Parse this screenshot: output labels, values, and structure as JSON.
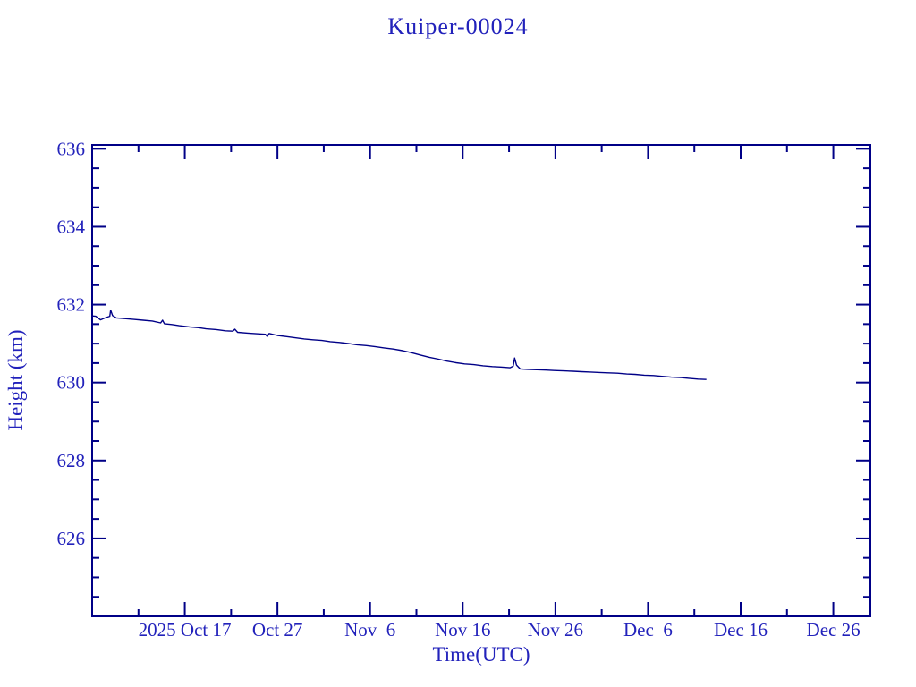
{
  "window": {
    "background_color": "#ffffff"
  },
  "chart_data": {
    "type": "line",
    "title": "Kuiper-00024",
    "xlabel": "Time(UTC)",
    "ylabel": "Height (km)",
    "colors": {
      "axis": "#000087",
      "line": "#000087",
      "text": "#2222bb",
      "background": "#ffffff"
    },
    "x_axis": {
      "unit": "days since 2025-10-07 (UTC)",
      "range_days": [
        0,
        84
      ],
      "major_ticks": [
        {
          "day": 10,
          "label": "2025 Oct 17"
        },
        {
          "day": 20,
          "label": "Oct 27"
        },
        {
          "day": 30,
          "label": "Nov  6"
        },
        {
          "day": 40,
          "label": "Nov 16"
        },
        {
          "day": 50,
          "label": "Nov 26"
        },
        {
          "day": 60,
          "label": "Dec  6"
        },
        {
          "day": 70,
          "label": "Dec 16"
        },
        {
          "day": 80,
          "label": "Dec 26"
        }
      ],
      "minor_tick_days": [
        5,
        15,
        25,
        35,
        45,
        55,
        65,
        75
      ]
    },
    "y_axis": {
      "range_km": [
        624.0,
        636.1
      ],
      "major_ticks": [
        626,
        628,
        630,
        632,
        634,
        636
      ],
      "minor_tick_step_km": 0.5
    },
    "legend": "none",
    "grid": "off",
    "series": [
      {
        "name": "Kuiper-00024 height",
        "color": "#000087",
        "points_day_km": [
          [
            0.0,
            631.71
          ],
          [
            0.4,
            631.7
          ],
          [
            0.9,
            631.61
          ],
          [
            1.4,
            631.66
          ],
          [
            1.9,
            631.7
          ],
          [
            2.0,
            631.86
          ],
          [
            2.2,
            631.72
          ],
          [
            2.6,
            631.66
          ],
          [
            3.5,
            631.64
          ],
          [
            4.5,
            631.62
          ],
          [
            5.5,
            631.6
          ],
          [
            6.5,
            631.58
          ],
          [
            7.4,
            631.53
          ],
          [
            7.6,
            631.6
          ],
          [
            7.8,
            631.51
          ],
          [
            8.6,
            631.49
          ],
          [
            9.4,
            631.46
          ],
          [
            10.5,
            631.43
          ],
          [
            11.5,
            631.41
          ],
          [
            12.3,
            631.38
          ],
          [
            13.4,
            631.36
          ],
          [
            14.4,
            631.33
          ],
          [
            15.2,
            631.32
          ],
          [
            15.4,
            631.37
          ],
          [
            15.7,
            631.29
          ],
          [
            16.8,
            631.27
          ],
          [
            17.9,
            631.25
          ],
          [
            18.7,
            631.24
          ],
          [
            18.9,
            631.18
          ],
          [
            19.1,
            631.26
          ],
          [
            20.0,
            631.21
          ],
          [
            21.0,
            631.18
          ],
          [
            21.9,
            631.15
          ],
          [
            22.9,
            631.12
          ],
          [
            23.8,
            631.1
          ],
          [
            24.8,
            631.08
          ],
          [
            25.7,
            631.05
          ],
          [
            26.7,
            631.03
          ],
          [
            27.7,
            631.0
          ],
          [
            28.6,
            630.97
          ],
          [
            29.6,
            630.95
          ],
          [
            30.6,
            630.92
          ],
          [
            31.5,
            630.89
          ],
          [
            32.5,
            630.86
          ],
          [
            33.5,
            630.82
          ],
          [
            34.4,
            630.77
          ],
          [
            35.4,
            630.71
          ],
          [
            36.4,
            630.65
          ],
          [
            37.4,
            630.6
          ],
          [
            38.3,
            630.55
          ],
          [
            39.3,
            630.51
          ],
          [
            40.2,
            630.48
          ],
          [
            41.2,
            630.46
          ],
          [
            42.2,
            630.43
          ],
          [
            43.2,
            630.41
          ],
          [
            44.1,
            630.4
          ],
          [
            45.1,
            630.38
          ],
          [
            45.45,
            630.42
          ],
          [
            45.6,
            630.63
          ],
          [
            45.8,
            630.45
          ],
          [
            46.2,
            630.35
          ],
          [
            47.0,
            630.34
          ],
          [
            48.0,
            630.33
          ],
          [
            49.0,
            630.32
          ],
          [
            49.9,
            630.31
          ],
          [
            50.9,
            630.3
          ],
          [
            51.9,
            630.29
          ],
          [
            52.8,
            630.28
          ],
          [
            53.8,
            630.27
          ],
          [
            54.8,
            630.26
          ],
          [
            55.7,
            630.25
          ],
          [
            56.7,
            630.24
          ],
          [
            57.7,
            630.22
          ],
          [
            58.6,
            630.21
          ],
          [
            59.6,
            630.19
          ],
          [
            60.6,
            630.18
          ],
          [
            61.5,
            630.16
          ],
          [
            62.5,
            630.14
          ],
          [
            63.5,
            630.13
          ],
          [
            64.4,
            630.11
          ],
          [
            65.4,
            630.09
          ],
          [
            66.3,
            630.08
          ]
        ]
      }
    ]
  }
}
